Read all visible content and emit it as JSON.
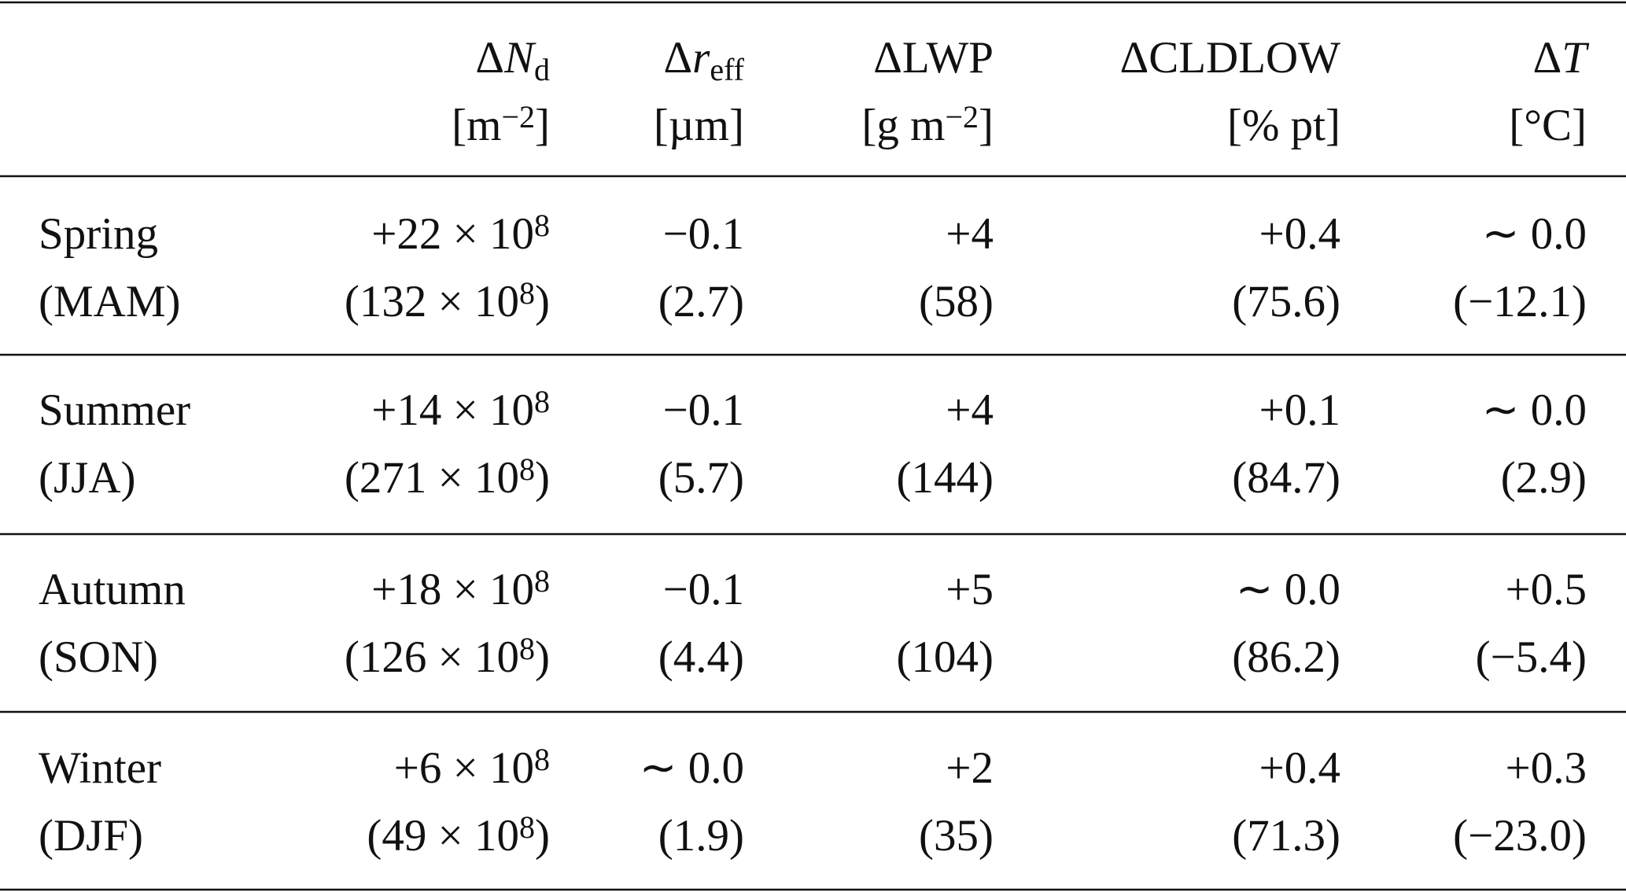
{
  "table": {
    "columns": [
      {
        "lines": [
          [
            {
              "text": "Δ"
            },
            {
              "text": "N",
              "style": "i"
            },
            {
              "text": "d",
              "style": "sub"
            }
          ],
          [
            {
              "text": "[m"
            },
            {
              "text": "−2",
              "style": "sup"
            },
            {
              "text": "]"
            }
          ]
        ]
      },
      {
        "lines": [
          [
            {
              "text": "Δ"
            },
            {
              "text": "r",
              "style": "i"
            },
            {
              "text": "eff",
              "style": "sub"
            }
          ],
          [
            {
              "text": "[µm]"
            }
          ]
        ]
      },
      {
        "lines": [
          [
            {
              "text": "ΔLWP"
            }
          ],
          [
            {
              "text": "[g m"
            },
            {
              "text": "−2",
              "style": "sup"
            },
            {
              "text": "]"
            }
          ]
        ]
      },
      {
        "lines": [
          [
            {
              "text": "ΔCLDLOW"
            }
          ],
          [
            {
              "text": "[% pt]"
            }
          ]
        ]
      },
      {
        "lines": [
          [
            {
              "text": "Δ"
            },
            {
              "text": "T",
              "style": "i"
            }
          ],
          [
            {
              "text": "[°C]"
            }
          ]
        ]
      }
    ],
    "rows": [
      {
        "label": [
          "Spring",
          "(MAM)"
        ],
        "cells": [
          [
            [
              {
                "text": "+22 × 10"
              },
              {
                "text": "8",
                "style": "sup"
              }
            ],
            [
              {
                "text": "(132 × 10"
              },
              {
                "text": "8",
                "style": "sup"
              },
              {
                "text": ")"
              }
            ]
          ],
          [
            [
              {
                "text": "−0.1"
              }
            ],
            [
              {
                "text": "(2.7)"
              }
            ]
          ],
          [
            [
              {
                "text": "+4"
              }
            ],
            [
              {
                "text": "(58)"
              }
            ]
          ],
          [
            [
              {
                "text": "+0.4"
              }
            ],
            [
              {
                "text": "(75.6)"
              }
            ]
          ],
          [
            [
              {
                "text": "∼ 0.0"
              }
            ],
            [
              {
                "text": "(−12.1)"
              }
            ]
          ]
        ]
      },
      {
        "label": [
          "Summer",
          "(JJA)"
        ],
        "cells": [
          [
            [
              {
                "text": "+14 × 10"
              },
              {
                "text": "8",
                "style": "sup"
              }
            ],
            [
              {
                "text": "(271 × 10"
              },
              {
                "text": "8",
                "style": "sup"
              },
              {
                "text": ")"
              }
            ]
          ],
          [
            [
              {
                "text": "−0.1"
              }
            ],
            [
              {
                "text": "(5.7)"
              }
            ]
          ],
          [
            [
              {
                "text": "+4"
              }
            ],
            [
              {
                "text": "(144)"
              }
            ]
          ],
          [
            [
              {
                "text": "+0.1"
              }
            ],
            [
              {
                "text": "(84.7)"
              }
            ]
          ],
          [
            [
              {
                "text": "∼ 0.0"
              }
            ],
            [
              {
                "text": "(2.9)"
              }
            ]
          ]
        ]
      },
      {
        "label": [
          "Autumn",
          "(SON)"
        ],
        "cells": [
          [
            [
              {
                "text": "+18 × 10"
              },
              {
                "text": "8",
                "style": "sup"
              }
            ],
            [
              {
                "text": "(126 × 10"
              },
              {
                "text": "8",
                "style": "sup"
              },
              {
                "text": ")"
              }
            ]
          ],
          [
            [
              {
                "text": "−0.1"
              }
            ],
            [
              {
                "text": "(4.4)"
              }
            ]
          ],
          [
            [
              {
                "text": "+5"
              }
            ],
            [
              {
                "text": "(104)"
              }
            ]
          ],
          [
            [
              {
                "text": "∼ 0.0"
              }
            ],
            [
              {
                "text": "(86.2)"
              }
            ]
          ],
          [
            [
              {
                "text": "+0.5"
              }
            ],
            [
              {
                "text": "(−5.4)"
              }
            ]
          ]
        ]
      },
      {
        "label": [
          "Winter",
          "(DJF)"
        ],
        "cells": [
          [
            [
              {
                "text": "+6 × 10"
              },
              {
                "text": "8",
                "style": "sup"
              }
            ],
            [
              {
                "text": "(49 × 10"
              },
              {
                "text": "8",
                "style": "sup"
              },
              {
                "text": ")"
              }
            ]
          ],
          [
            [
              {
                "text": "∼ 0.0"
              }
            ],
            [
              {
                "text": "(1.9)"
              }
            ]
          ],
          [
            [
              {
                "text": "+2"
              }
            ],
            [
              {
                "text": "(35)"
              }
            ]
          ],
          [
            [
              {
                "text": "+0.4"
              }
            ],
            [
              {
                "text": "(71.3)"
              }
            ]
          ],
          [
            [
              {
                "text": "+0.3"
              }
            ],
            [
              {
                "text": "(−23.0)"
              }
            ]
          ]
        ]
      }
    ]
  }
}
